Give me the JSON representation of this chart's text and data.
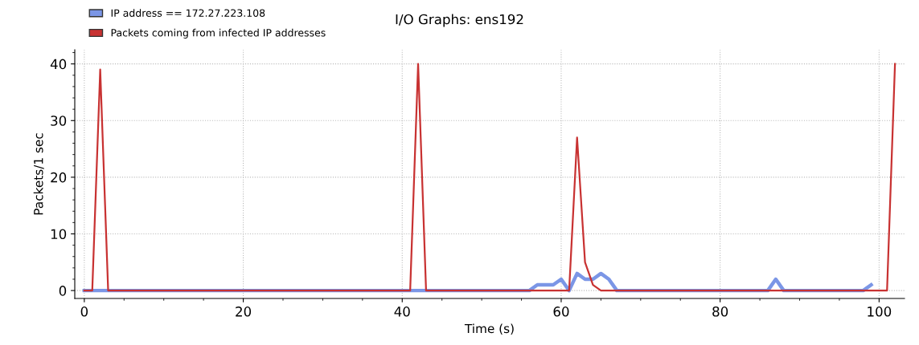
{
  "chart_data": {
    "type": "line",
    "title": "I/O Graphs: ens192",
    "xlabel": "Time (s)",
    "ylabel": "Packets/1 sec",
    "series": [
      {
        "name": "IP address == 172.27.223.108",
        "color": "#7b96e6",
        "x": [
          0,
          56,
          57,
          58,
          59,
          60,
          61,
          62,
          63,
          64,
          65,
          66,
          67,
          86,
          87,
          88,
          98,
          99
        ],
        "values": [
          0,
          0,
          1,
          1,
          1,
          2,
          0,
          3,
          2,
          2,
          3,
          2,
          0,
          0,
          2,
          0,
          0,
          1
        ]
      },
      {
        "name": "Packets coming from infected IP addresses",
        "color": "#c83232",
        "x": [
          0,
          1,
          2,
          3,
          41,
          42,
          43,
          61,
          62,
          63,
          64,
          65,
          101,
          102
        ],
        "values": [
          0,
          0,
          39,
          0,
          0,
          40,
          0,
          0,
          27,
          5,
          1,
          0,
          0,
          40
        ]
      }
    ],
    "xlim": [
      -1.2,
      103.2
    ],
    "ylim": [
      -1.4,
      42.5
    ],
    "xticks": [
      0,
      20,
      40,
      60,
      80,
      100
    ],
    "yticks": [
      0,
      10,
      20,
      30,
      40
    ],
    "grid": true,
    "legend": "top left",
    "marker": "none",
    "line_style": "solid"
  }
}
